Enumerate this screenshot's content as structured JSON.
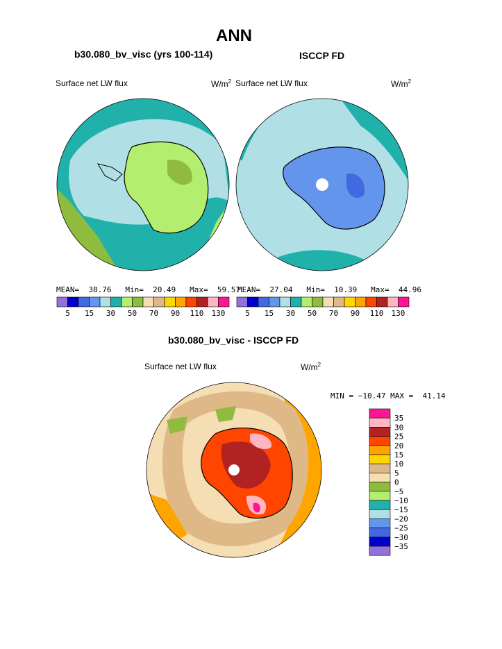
{
  "page": {
    "title": "ANN",
    "left_header": "b30.080_bv_visc (yrs 100-114)",
    "right_header": "ISCCP FD",
    "bottom_header": "b30.080_bv_visc - ISCCP FD"
  },
  "panels": {
    "left": {
      "variable": "Surface net LW flux",
      "units": "W/m",
      "units_sup": "2",
      "stats": {
        "mean_label": "MEAN=",
        "mean": "38.76",
        "min_label": "Min=",
        "min": "20.49",
        "max_label": "Max=",
        "max": "59.57"
      }
    },
    "right": {
      "variable": "Surface net LW flux",
      "units": "W/m",
      "units_sup": "2",
      "stats": {
        "mean_label": "MEAN=",
        "mean": "27.04",
        "min_label": "Min=",
        "min": "10.39",
        "max_label": "Max=",
        "max": "44.96"
      }
    },
    "bottom": {
      "variable": "Surface net LW flux",
      "units": "W/m",
      "units_sup": "2",
      "stats_line": "MIN = −10.47 MAX =  41.14"
    }
  },
  "colors": {
    "abs_scale": [
      "#9370db",
      "#0000cd",
      "#4169e1",
      "#6495ed",
      "#b0e0e6",
      "#20b2aa",
      "#b4ee6e",
      "#8fbc3f",
      "#f5deb3",
      "#deb887",
      "#ffd700",
      "#ffa500",
      "#ff4500",
      "#b22222",
      "#ffb6c1",
      "#ff1493"
    ],
    "diff_scale": [
      "#9370db",
      "#0000cd",
      "#4169e1",
      "#6495ed",
      "#b0e0e6",
      "#20b2aa",
      "#b4ee6e",
      "#8fbc3f",
      "#f5deb3",
      "#deb887",
      "#ffd700",
      "#ffa500",
      "#ff4500",
      "#b22222",
      "#ffb6c1",
      "#ff1493"
    ],
    "coast": "#000000"
  },
  "chart_data": [
    {
      "type": "heatmap",
      "projection": "south-polar",
      "title": "b30.080_bv_visc (yrs 100-114)",
      "variable": "Surface net LW flux",
      "units": "W/m2",
      "mean": 38.76,
      "min": 20.49,
      "max": 59.57,
      "colorbar_levels": [
        5,
        10,
        15,
        20,
        30,
        40,
        50,
        60,
        70,
        80,
        90,
        100,
        110,
        120,
        130
      ],
      "colorbar_tick_labels": [
        "5",
        "15",
        "30",
        "50",
        "70",
        "90",
        "110",
        "130"
      ]
    },
    {
      "type": "heatmap",
      "projection": "south-polar",
      "title": "ISCCP FD",
      "variable": "Surface net LW flux",
      "units": "W/m2",
      "mean": 27.04,
      "min": 10.39,
      "max": 44.96,
      "colorbar_levels": [
        5,
        10,
        15,
        20,
        30,
        40,
        50,
        60,
        70,
        80,
        90,
        100,
        110,
        120,
        130
      ],
      "colorbar_tick_labels": [
        "5",
        "15",
        "30",
        "50",
        "70",
        "90",
        "110",
        "130"
      ]
    },
    {
      "type": "heatmap",
      "projection": "south-polar",
      "title": "b30.080_bv_visc - ISCCP FD",
      "variable": "Surface net LW flux",
      "units": "W/m2",
      "min": -10.47,
      "max": 41.14,
      "colorbar_levels": [
        -35,
        -30,
        -25,
        -20,
        -15,
        -10,
        -5,
        0,
        5,
        10,
        15,
        20,
        25,
        30,
        35
      ],
      "colorbar_tick_labels": [
        "35",
        "30",
        "25",
        "20",
        "15",
        "10",
        "5",
        "0",
        "−5",
        "−10",
        "−15",
        "−20",
        "−25",
        "−30",
        "−35"
      ]
    }
  ]
}
